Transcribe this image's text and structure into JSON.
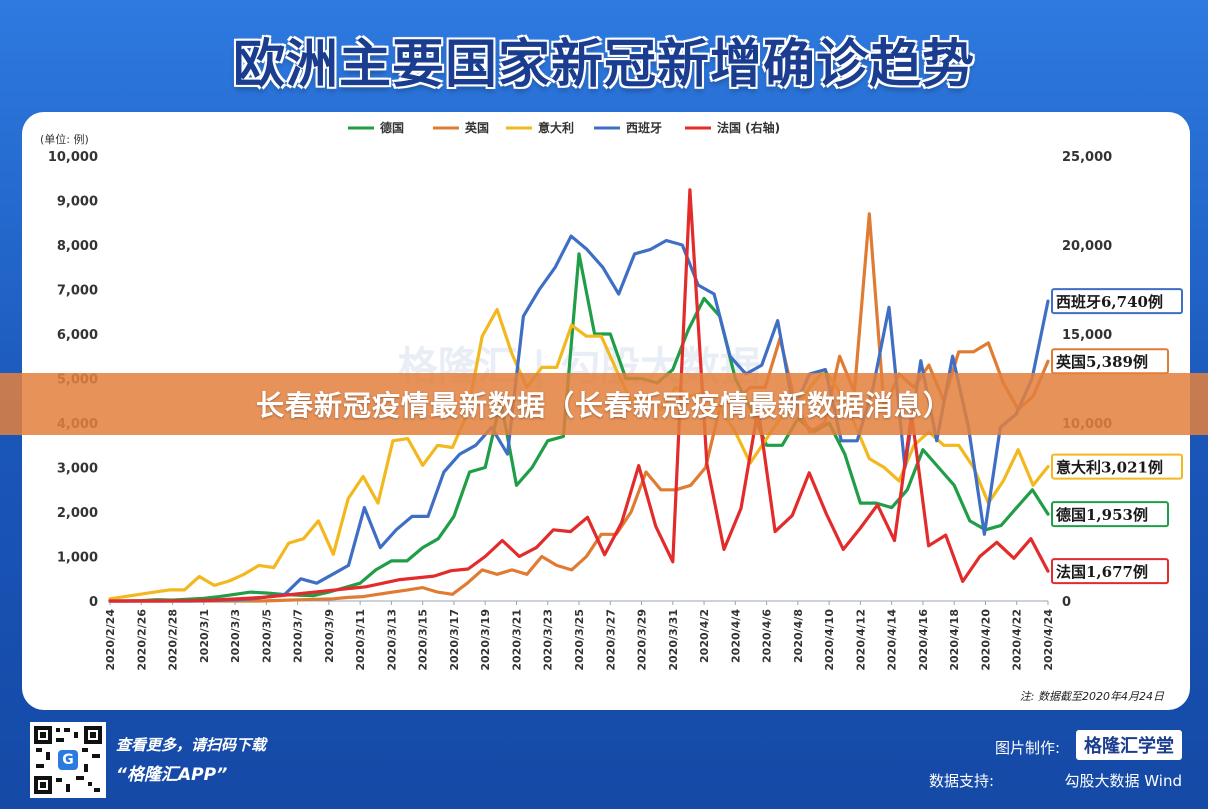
{
  "title": "欧洲主要国家新冠新增确诊趋势",
  "banner": "长春新冠疫情最新数据（长春新冠疫情最新数据消息）",
  "watermark": "格隆汇 | 勾股大数据",
  "footer": {
    "scan_line1": "查看更多，请扫码下载",
    "scan_line2": "“格隆汇APP”",
    "qr_badge": "G",
    "made_label": "图片制作:",
    "made_brand": "格隆汇学堂",
    "support_label": "数据支持:",
    "support_value": "勾股大数据  Wind"
  },
  "chart_data": {
    "type": "line",
    "left_unit": "(单位: 例)",
    "note": "注: 数据截至2020年4月24日",
    "y_left": {
      "min": 0,
      "max": 10000,
      "ticks": [
        "0",
        "1,000",
        "2,000",
        "3,000",
        "4,000",
        "5,000",
        "6,000",
        "7,000",
        "8,000",
        "9,000",
        "10,000"
      ]
    },
    "y_right": {
      "min": 0,
      "max": 25000,
      "ticks": [
        "0",
        "5,000",
        "10,000",
        "15,000",
        "20,000",
        "25,000"
      ]
    },
    "x_tick_labels": [
      "2020/2/24",
      "2020/2/26",
      "2020/2/28",
      "2020/3/1",
      "2020/3/3",
      "2020/3/5",
      "2020/3/7",
      "2020/3/9",
      "2020/3/11",
      "2020/3/13",
      "2020/3/15",
      "2020/3/17",
      "2020/3/19",
      "2020/3/21",
      "2020/3/23",
      "2020/3/25",
      "2020/3/27",
      "2020/3/29",
      "2020/3/31",
      "2020/4/2",
      "2020/4/4",
      "2020/4/6",
      "2020/4/8",
      "2020/4/10",
      "2020/4/12",
      "2020/4/14",
      "2020/4/16",
      "2020/4/18",
      "2020/4/20",
      "2020/4/22",
      "2020/4/24"
    ],
    "x_start": "2020/2/24",
    "x_end": "2020/4/24",
    "grid": false,
    "legend_position": "top",
    "series": [
      {
        "name": "德国",
        "axis": "left",
        "color": "#1f9e47",
        "end_label": "德国1,953例",
        "values": [
          0,
          0,
          10,
          30,
          20,
          40,
          60,
          100,
          150,
          200,
          180,
          150,
          130,
          120,
          200,
          300,
          400,
          700,
          900,
          900,
          1200,
          1400,
          1900,
          2900,
          3000,
          4500,
          2600,
          3000,
          3600,
          3700,
          7800,
          6000,
          6000,
          5000,
          5000,
          4900,
          5200,
          6100,
          6800,
          6400,
          5000,
          4300,
          3500,
          3500,
          4100,
          3800,
          4000,
          3300,
          2200,
          2200,
          2100,
          2500,
          3400,
          3000,
          2600,
          1800,
          1600,
          1700,
          2100,
          2500,
          1953
        ]
      },
      {
        "name": "英国",
        "axis": "left",
        "color": "#e07b33",
        "end_label": "英国5,389例",
        "values": [
          0,
          0,
          0,
          0,
          0,
          0,
          0,
          0,
          0,
          0,
          0,
          10,
          20,
          30,
          40,
          50,
          80,
          100,
          150,
          200,
          250,
          300,
          200,
          150,
          400,
          700,
          600,
          700,
          600,
          1000,
          800,
          700,
          1000,
          1500,
          1500,
          2000,
          2900,
          2500,
          2500,
          2600,
          3000,
          4400,
          4500,
          4800,
          4800,
          5900,
          4500,
          3800,
          4000,
          5500,
          4700,
          8700,
          4300,
          5100,
          4800,
          5300,
          4500,
          5600,
          5600,
          5800,
          4900,
          4300,
          4600,
          5389
        ]
      },
      {
        "name": "意大利",
        "axis": "left",
        "color": "#f2b81e",
        "end_label": "意大利3,021例",
        "values": [
          50,
          100,
          150,
          200,
          250,
          250,
          550,
          350,
          450,
          600,
          800,
          750,
          1300,
          1400,
          1800,
          1050,
          2300,
          2800,
          2200,
          3600,
          3650,
          3050,
          3500,
          3450,
          4200,
          5950,
          6550,
          5550,
          4800,
          5250,
          5250,
          6200,
          5950,
          5950,
          5200,
          4500,
          4600,
          4300,
          4800,
          4600,
          4700,
          4300,
          3800,
          3100,
          3600,
          4100,
          4300,
          4800,
          5200,
          4700,
          4000,
          3200,
          3000,
          2700,
          3500,
          3800,
          3500,
          3500,
          3000,
          2200,
          2700,
          3400,
          2600,
          3021
        ]
      },
      {
        "name": "西班牙",
        "axis": "left",
        "color": "#3f6fc4",
        "end_label": "西班牙6,740例",
        "values": [
          0,
          0,
          0,
          0,
          0,
          0,
          10,
          20,
          30,
          50,
          100,
          150,
          500,
          400,
          600,
          800,
          2100,
          1200,
          1600,
          1900,
          1900,
          2900,
          3300,
          3500,
          3900,
          3300,
          6400,
          7000,
          7500,
          8200,
          7900,
          7500,
          6900,
          7800,
          7900,
          8100,
          8000,
          7100,
          6900,
          5500,
          5100,
          5300,
          6300,
          4300,
          5100,
          5200,
          3600,
          3600,
          4800,
          6600,
          3000,
          5400,
          3600,
          5500,
          3900,
          1500,
          3900,
          4200,
          5000,
          6740
        ]
      },
      {
        "name": "法国 (右轴)",
        "axis": "right",
        "color": "#e32b2b",
        "end_label": "法国1,677例",
        "values": [
          0,
          0,
          0,
          0,
          10,
          20,
          50,
          100,
          150,
          200,
          300,
          400,
          500,
          600,
          700,
          800,
          1000,
          1200,
          1300,
          1400,
          1700,
          1800,
          2500,
          3400,
          2500,
          3000,
          4000,
          3900,
          4700,
          2600,
          4400,
          7600,
          4200,
          2200,
          23100,
          7700,
          2900,
          5200,
          10800,
          3900,
          4800,
          7200,
          4900,
          2900,
          4100,
          5400,
          3400,
          10500,
          3100,
          3700,
          1100,
          2500,
          3300,
          2400,
          3500,
          1677
        ]
      }
    ]
  }
}
